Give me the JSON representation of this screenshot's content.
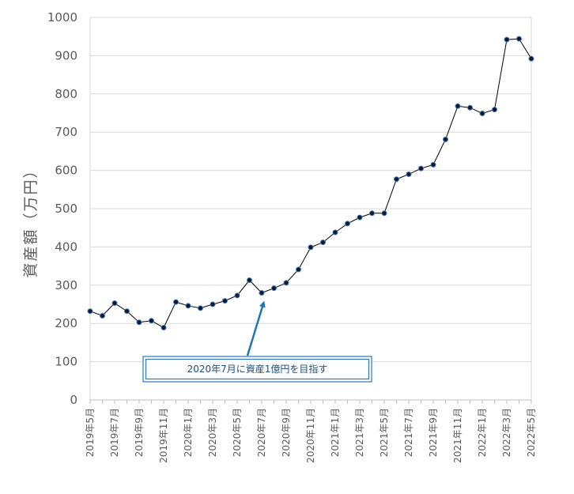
{
  "chart_data": {
    "type": "line",
    "title": "",
    "xlabel": "",
    "ylabel": "資産額（万円）",
    "ylim": [
      0,
      1000
    ],
    "yticks": [
      0,
      100,
      200,
      300,
      400,
      500,
      600,
      700,
      800,
      900,
      1000
    ],
    "grid": true,
    "legend": "none",
    "x_tick_labels": [
      "2019年5月",
      "2019年7月",
      "2019年9月",
      "2019年11月",
      "2020年1月",
      "2020年3月",
      "2020年5月",
      "2020年7月",
      "2020年9月",
      "2020年11月",
      "2021年1月",
      "2021年3月",
      "2021年5月",
      "2021年7月",
      "2021年9月",
      "2021年11月",
      "2022年1月",
      "2022年3月",
      "2022年5月"
    ],
    "x": [
      "2019年5月",
      "2019年6月",
      "2019年7月",
      "2019年8月",
      "2019年9月",
      "2019年10月",
      "2019年11月",
      "2019年12月",
      "2020年1月",
      "2020年2月",
      "2020年3月",
      "2020年4月",
      "2020年5月",
      "2020年6月",
      "2020年7月",
      "2020年8月",
      "2020年9月",
      "2020年10月",
      "2020年11月",
      "2020年12月",
      "2021年1月",
      "2021年2月",
      "2021年3月",
      "2021年4月",
      "2021年5月",
      "2021年6月",
      "2021年7月",
      "2021年8月",
      "2021年9月",
      "2021年10月",
      "2021年11月",
      "2021年12月",
      "2022年1月",
      "2022年2月",
      "2022年3月",
      "2022年4月",
      "2022年5月"
    ],
    "series": [
      {
        "values": [
          232,
          220,
          253,
          232,
          203,
          207,
          189,
          256,
          246,
          240,
          250,
          259,
          273,
          313,
          280,
          292,
          306,
          341,
          399,
          412,
          438,
          461,
          477,
          488,
          488,
          577,
          590,
          605,
          615,
          681,
          768,
          764,
          749,
          759,
          942,
          944,
          892
        ]
      }
    ],
    "colors": {
      "line": "#000000",
      "marker_fill": "#0b1a33",
      "marker_edge": "#4a78b5",
      "grid": "#d9d9d9",
      "axis": "#bfbfbf",
      "annotation": "#1f77b4"
    },
    "annotation": {
      "text": "2020年7月に資産1億円を目指す",
      "points_to": "2020年7月"
    }
  }
}
